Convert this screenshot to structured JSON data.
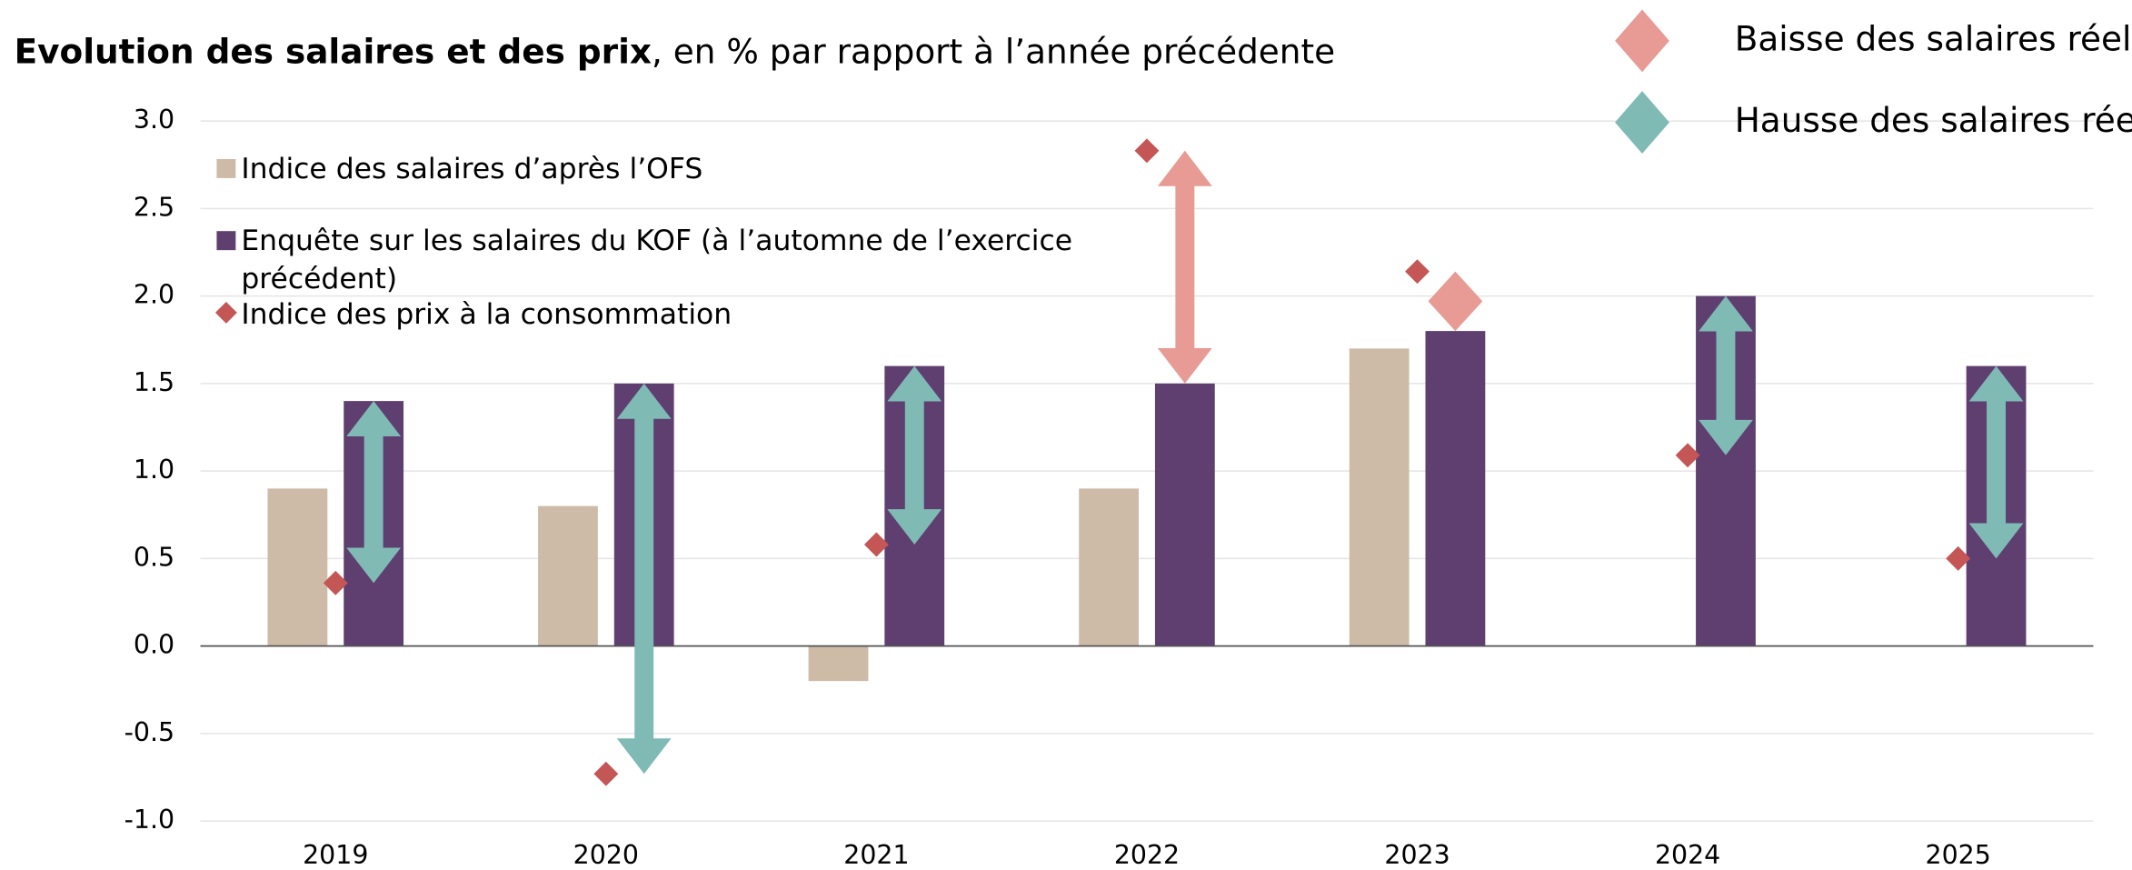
{
  "chart_data": {
    "type": "bar",
    "title": "Evolution des salaires et des prix",
    "subtitle": ", en % par rapport à l’année précédente",
    "categories": [
      "2019",
      "2020",
      "2021",
      "2022",
      "2023",
      "2024",
      "2025"
    ],
    "series": [
      {
        "name": "Indice des salaires d’après l’OFS",
        "color": "#cdbba8",
        "type": "bar",
        "values": [
          0.9,
          0.8,
          -0.2,
          0.9,
          1.7,
          null,
          null
        ]
      },
      {
        "name": "Enquête sur les salaires du KOF (à l’automne de l’exercice précédent)",
        "color": "#5e3f70",
        "type": "bar",
        "values": [
          1.4,
          1.5,
          1.6,
          1.5,
          1.8,
          2.0,
          1.6
        ]
      },
      {
        "name": "Indice des prix à la consommation",
        "color": "#c45656",
        "type": "scatter",
        "values": [
          0.36,
          -0.73,
          0.58,
          2.83,
          2.14,
          1.09,
          0.5
        ]
      }
    ],
    "arrow_legend": [
      {
        "label": "Baisse des salaires réels",
        "color": "#e89a94"
      },
      {
        "label": "Hausse des salaires réels",
        "color": "#7fbab5"
      }
    ],
    "ylim": [
      -1.0,
      3.0
    ],
    "yticks": [
      {
        "value": -1,
        "label": "-1.0"
      },
      {
        "value": -0.5,
        "label": "-0.5"
      },
      {
        "value": 0,
        "label": "0.0"
      },
      {
        "value": 0.5,
        "label": "0.5"
      },
      {
        "value": 1,
        "label": "1.0"
      },
      {
        "value": 1.5,
        "label": "1.5"
      },
      {
        "value": 2,
        "label": "2.0"
      },
      {
        "value": 2.5,
        "label": "2.5"
      },
      {
        "value": 3,
        "label": "3.0"
      }
    ],
    "grid": true
  }
}
